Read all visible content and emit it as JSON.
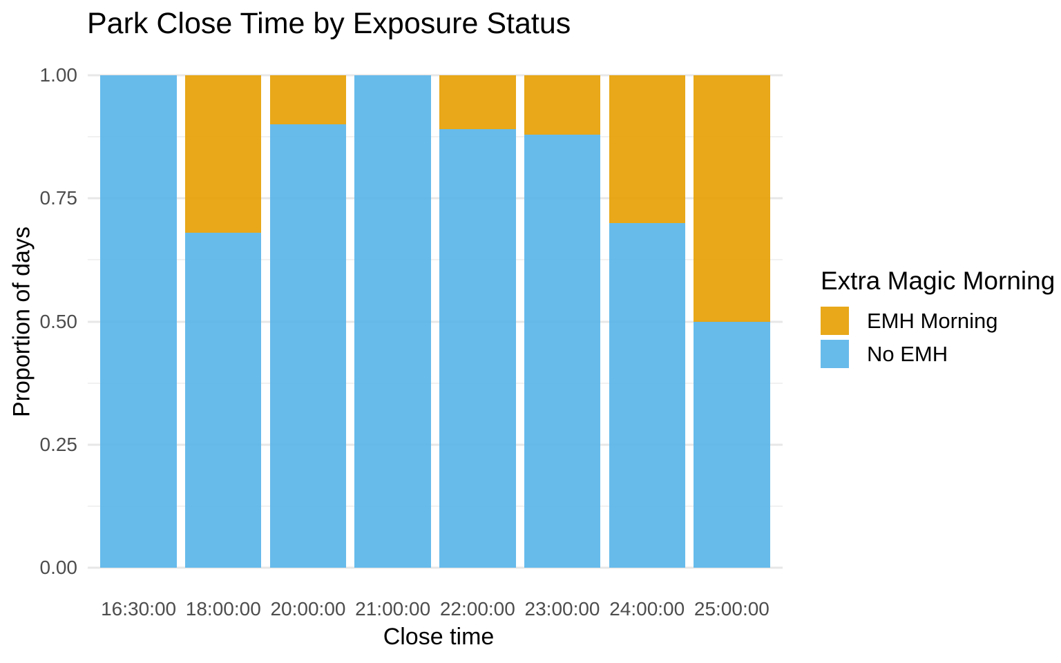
{
  "title": "Park Close Time by Exposure Status",
  "chart_data": {
    "type": "bar",
    "stacked": true,
    "normalized": true,
    "title": "Park Close Time by Exposure Status",
    "xlabel": "Close time",
    "ylabel": "Proportion of days",
    "categories": [
      "16:30:00",
      "18:00:00",
      "20:00:00",
      "21:00:00",
      "22:00:00",
      "23:00:00",
      "24:00:00",
      "25:00:00"
    ],
    "series": [
      {
        "name": "EMH Morning",
        "color": "#E69F00",
        "values": [
          0.0,
          0.32,
          0.1,
          0.0,
          0.11,
          0.12,
          0.3,
          0.5
        ]
      },
      {
        "name": "No EMH",
        "color": "#56B4E9",
        "values": [
          1.0,
          0.68,
          0.9,
          1.0,
          0.89,
          0.88,
          0.7,
          0.5
        ]
      }
    ],
    "bar_alpha": 0.9,
    "bar_width_fraction": 0.9,
    "ylim": [
      0,
      1
    ],
    "yticks": [
      0.0,
      0.25,
      0.5,
      0.75,
      1.0
    ],
    "ytick_labels": [
      "0.00",
      "0.25",
      "0.50",
      "0.75",
      "1.00"
    ],
    "yticks_minor": [
      0.125,
      0.375,
      0.625,
      0.875
    ],
    "grid": true,
    "legend_position": "right"
  },
  "legend": {
    "title": "Extra Magic Morning",
    "items": [
      {
        "label": "EMH Morning",
        "color": "#E69F00"
      },
      {
        "label": "No EMH",
        "color": "#56B4E9"
      }
    ]
  },
  "style_colors": {
    "background": "#FFFFFF",
    "grid_major": "#E7E7E7",
    "grid_minor": "#F1F1F1",
    "axis_text": "#4D4D4D",
    "title_text": "#000000"
  }
}
